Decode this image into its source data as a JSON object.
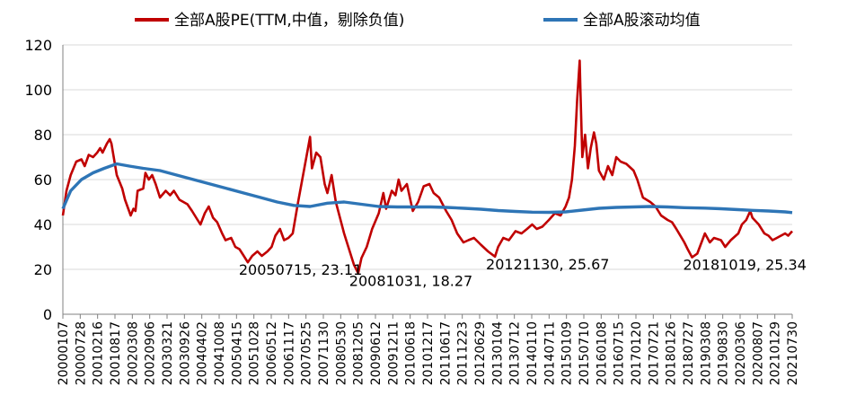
{
  "chart_data": {
    "type": "line",
    "title": "",
    "xlabel": "",
    "ylabel": "",
    "ylim": [
      0,
      120
    ],
    "yticks": [
      "0",
      "20",
      "40",
      "60",
      "80",
      "100",
      "120"
    ],
    "grid": "horizontal",
    "legend_position": "top",
    "x_tick_labels": [
      "20000107",
      "20000728",
      "20010216",
      "20010817",
      "20020308",
      "20020906",
      "20030321",
      "20030926",
      "20040402",
      "20041008",
      "20050415",
      "20051028",
      "20060512",
      "20061117",
      "20070525",
      "20071130",
      "20080530",
      "20081205",
      "20090612",
      "20091211",
      "20100618",
      "20101217",
      "20110617",
      "20111223",
      "20120629",
      "20130104",
      "20130712",
      "20140110",
      "20140711",
      "20150109",
      "20150710",
      "20160108",
      "20160715",
      "20170120",
      "20170721",
      "20180126",
      "20180727",
      "20190308",
      "20190830",
      "20200306",
      "20200807",
      "20210129",
      "20210730"
    ],
    "series": [
      {
        "name": "全部A股PE(TTM,中值，剔除负值)",
        "color": "#C00000",
        "points": [
          [
            "2000-01-07",
            44
          ],
          [
            "2000-02-15",
            55
          ],
          [
            "2000-04-01",
            62
          ],
          [
            "2000-06-01",
            68
          ],
          [
            "2000-07-28",
            69
          ],
          [
            "2000-09-01",
            66
          ],
          [
            "2000-10-15",
            71
          ],
          [
            "2000-12-01",
            70
          ],
          [
            "2001-01-15",
            72
          ],
          [
            "2001-02-16",
            74
          ],
          [
            "2001-03-15",
            72
          ],
          [
            "2001-05-01",
            76
          ],
          [
            "2001-06-01",
            78
          ],
          [
            "2001-06-20",
            76
          ],
          [
            "2001-08-17",
            62
          ],
          [
            "2001-10-15",
            56
          ],
          [
            "2001-11-15",
            51
          ],
          [
            "2002-01-15",
            44
          ],
          [
            "2002-02-15",
            47
          ],
          [
            "2002-03-08",
            46
          ],
          [
            "2002-04-01",
            55
          ],
          [
            "2002-06-01",
            56
          ],
          [
            "2002-06-25",
            63
          ],
          [
            "2002-08-01",
            60
          ],
          [
            "2002-09-06",
            62
          ],
          [
            "2002-10-15",
            58
          ],
          [
            "2002-12-01",
            52
          ],
          [
            "2003-02-01",
            55
          ],
          [
            "2003-03-21",
            53
          ],
          [
            "2003-05-01",
            55
          ],
          [
            "2003-07-01",
            51
          ],
          [
            "2003-09-26",
            49
          ],
          [
            "2003-11-15",
            46
          ],
          [
            "2004-01-15",
            42
          ],
          [
            "2004-02-15",
            40
          ],
          [
            "2004-04-02",
            45
          ],
          [
            "2004-05-15",
            48
          ],
          [
            "2004-07-01",
            43
          ],
          [
            "2004-08-15",
            41
          ],
          [
            "2004-10-08",
            36
          ],
          [
            "2004-11-15",
            33
          ],
          [
            "2005-01-15",
            34
          ],
          [
            "2005-03-01",
            30
          ],
          [
            "2005-04-15",
            29
          ],
          [
            "2005-06-01",
            26
          ],
          [
            "2005-07-15",
            23.11
          ],
          [
            "2005-09-01",
            26
          ],
          [
            "2005-10-28",
            28
          ],
          [
            "2005-12-15",
            26
          ],
          [
            "2006-02-15",
            28
          ],
          [
            "2006-04-01",
            30
          ],
          [
            "2006-05-12",
            35
          ],
          [
            "2006-07-01",
            38
          ],
          [
            "2006-08-15",
            33
          ],
          [
            "2006-10-01",
            34
          ],
          [
            "2006-11-17",
            36
          ],
          [
            "2007-01-15",
            50
          ],
          [
            "2007-03-01",
            60
          ],
          [
            "2007-04-15",
            70
          ],
          [
            "2007-05-25",
            79
          ],
          [
            "2007-06-15",
            65
          ],
          [
            "2007-08-01",
            72
          ],
          [
            "2007-09-15",
            70
          ],
          [
            "2007-11-01",
            58
          ],
          [
            "2007-11-30",
            54
          ],
          [
            "2008-01-15",
            62
          ],
          [
            "2008-03-01",
            50
          ],
          [
            "2008-05-30",
            36
          ],
          [
            "2008-07-15",
            30
          ],
          [
            "2008-09-15",
            22
          ],
          [
            "2008-10-31",
            18.27
          ],
          [
            "2008-12-05",
            25
          ],
          [
            "2009-02-01",
            30
          ],
          [
            "2009-04-01",
            38
          ],
          [
            "2009-06-12",
            45
          ],
          [
            "2009-08-01",
            54
          ],
          [
            "2009-09-01",
            47
          ],
          [
            "2009-11-01",
            55
          ],
          [
            "2009-12-11",
            53
          ],
          [
            "2010-01-15",
            60
          ],
          [
            "2010-02-15",
            55
          ],
          [
            "2010-04-15",
            58
          ],
          [
            "2010-06-18",
            46
          ],
          [
            "2010-08-15",
            50
          ],
          [
            "2010-10-15",
            57
          ],
          [
            "2010-12-17",
            58
          ],
          [
            "2011-02-01",
            54
          ],
          [
            "2011-04-01",
            52
          ],
          [
            "2011-06-17",
            46
          ],
          [
            "2011-08-15",
            42
          ],
          [
            "2011-10-15",
            36
          ],
          [
            "2011-12-23",
            32
          ],
          [
            "2012-02-15",
            33
          ],
          [
            "2012-04-15",
            34
          ],
          [
            "2012-06-29",
            31
          ],
          [
            "2012-09-15",
            28
          ],
          [
            "2012-11-30",
            25.67
          ],
          [
            "2013-01-04",
            30
          ],
          [
            "2013-03-01",
            34
          ],
          [
            "2013-05-01",
            33
          ],
          [
            "2013-07-12",
            37
          ],
          [
            "2013-09-15",
            36
          ],
          [
            "2013-11-15",
            38
          ],
          [
            "2014-01-10",
            40
          ],
          [
            "2014-03-01",
            38
          ],
          [
            "2014-05-01",
            39
          ],
          [
            "2014-07-11",
            42
          ],
          [
            "2014-09-15",
            45
          ],
          [
            "2014-11-15",
            44
          ],
          [
            "2015-01-09",
            48
          ],
          [
            "2015-02-15",
            52
          ],
          [
            "2015-03-20",
            60
          ],
          [
            "2015-04-20",
            75
          ],
          [
            "2015-05-15",
            95
          ],
          [
            "2015-06-12",
            113
          ],
          [
            "2015-06-20",
            100
          ],
          [
            "2015-07-10",
            70
          ],
          [
            "2015-08-10",
            80
          ],
          [
            "2015-09-10",
            65
          ],
          [
            "2015-10-10",
            74
          ],
          [
            "2015-11-15",
            81
          ],
          [
            "2015-12-10",
            76
          ],
          [
            "2016-01-08",
            64
          ],
          [
            "2016-03-01",
            60
          ],
          [
            "2016-04-15",
            66
          ],
          [
            "2016-06-01",
            62
          ],
          [
            "2016-07-15",
            70
          ],
          [
            "2016-09-01",
            68
          ],
          [
            "2016-11-01",
            67
          ],
          [
            "2017-01-20",
            64
          ],
          [
            "2017-03-01",
            60
          ],
          [
            "2017-05-01",
            52
          ],
          [
            "2017-07-21",
            50
          ],
          [
            "2017-09-15",
            48
          ],
          [
            "2017-11-15",
            44
          ],
          [
            "2018-01-26",
            42
          ],
          [
            "2018-03-15",
            41
          ],
          [
            "2018-05-01",
            38
          ],
          [
            "2018-07-27",
            32
          ],
          [
            "2018-09-01",
            29
          ],
          [
            "2018-10-19",
            25.34
          ],
          [
            "2018-12-15",
            27
          ],
          [
            "2019-03-08",
            36
          ],
          [
            "2019-05-01",
            32
          ],
          [
            "2019-06-15",
            34
          ],
          [
            "2019-08-30",
            33
          ],
          [
            "2019-10-15",
            30
          ],
          [
            "2019-12-15",
            33
          ],
          [
            "2020-03-06",
            36
          ],
          [
            "2020-04-15",
            40
          ],
          [
            "2020-06-01",
            42
          ],
          [
            "2020-07-15",
            46
          ],
          [
            "2020-08-07",
            43
          ],
          [
            "2020-10-15",
            40
          ],
          [
            "2020-12-15",
            36
          ],
          [
            "2021-01-29",
            35
          ],
          [
            "2021-03-15",
            33
          ],
          [
            "2021-05-01",
            34
          ],
          [
            "2021-07-30",
            36
          ],
          [
            "2021-09-01",
            35
          ],
          [
            "2021-10-15",
            37
          ]
        ]
      },
      {
        "name": "全部A股滚动均值",
        "color": "#2E75B6",
        "points": [
          [
            "2000-01-07",
            47
          ],
          [
            "2000-04-01",
            55
          ],
          [
            "2000-07-28",
            60
          ],
          [
            "2000-12-01",
            63
          ],
          [
            "2001-04-01",
            65
          ],
          [
            "2001-08-17",
            67
          ],
          [
            "2002-01-01",
            66
          ],
          [
            "2002-06-01",
            65
          ],
          [
            "2002-12-01",
            64
          ],
          [
            "2003-06-01",
            62
          ],
          [
            "2003-12-01",
            60
          ],
          [
            "2004-06-01",
            58
          ],
          [
            "2004-12-01",
            56
          ],
          [
            "2005-06-01",
            54
          ],
          [
            "2005-12-01",
            52
          ],
          [
            "2006-06-01",
            50
          ],
          [
            "2006-12-01",
            48.5
          ],
          [
            "2007-05-25",
            48
          ],
          [
            "2007-11-30",
            49.5
          ],
          [
            "2008-05-30",
            50
          ],
          [
            "2008-12-05",
            49
          ],
          [
            "2009-06-12",
            48
          ],
          [
            "2010-01-01",
            47.8
          ],
          [
            "2010-06-18",
            47.8
          ],
          [
            "2011-01-01",
            47.8
          ],
          [
            "2011-06-17",
            47.6
          ],
          [
            "2012-01-01",
            47.2
          ],
          [
            "2012-06-29",
            46.8
          ],
          [
            "2013-01-04",
            46.2
          ],
          [
            "2013-07-12",
            45.8
          ],
          [
            "2014-01-10",
            45.5
          ],
          [
            "2014-07-11",
            45.4
          ],
          [
            "2015-01-09",
            45.6
          ],
          [
            "2015-07-10",
            46.4
          ],
          [
            "2016-01-08",
            47.2
          ],
          [
            "2016-07-15",
            47.6
          ],
          [
            "2017-01-20",
            47.8
          ],
          [
            "2017-07-21",
            48
          ],
          [
            "2018-01-26",
            47.8
          ],
          [
            "2018-07-27",
            47.5
          ],
          [
            "2019-03-08",
            47.3
          ],
          [
            "2019-08-30",
            47
          ],
          [
            "2020-03-06",
            46.6
          ],
          [
            "2020-08-07",
            46.3
          ],
          [
            "2021-01-29",
            46
          ],
          [
            "2021-07-30",
            45.6
          ],
          [
            "2021-10-15",
            45.3
          ]
        ]
      }
    ],
    "annotations": [
      {
        "text": "20050715, 23.11",
        "x": "2005-07-15",
        "y": 23.11
      },
      {
        "text": "20081031, 18.27",
        "x": "2008-10-31",
        "y": 18.27
      },
      {
        "text": "20121130, 25.67",
        "x": "2012-11-30",
        "y": 25.67
      },
      {
        "text": "20181019, 25.34",
        "x": "2018-10-19",
        "y": 25.34
      }
    ]
  }
}
